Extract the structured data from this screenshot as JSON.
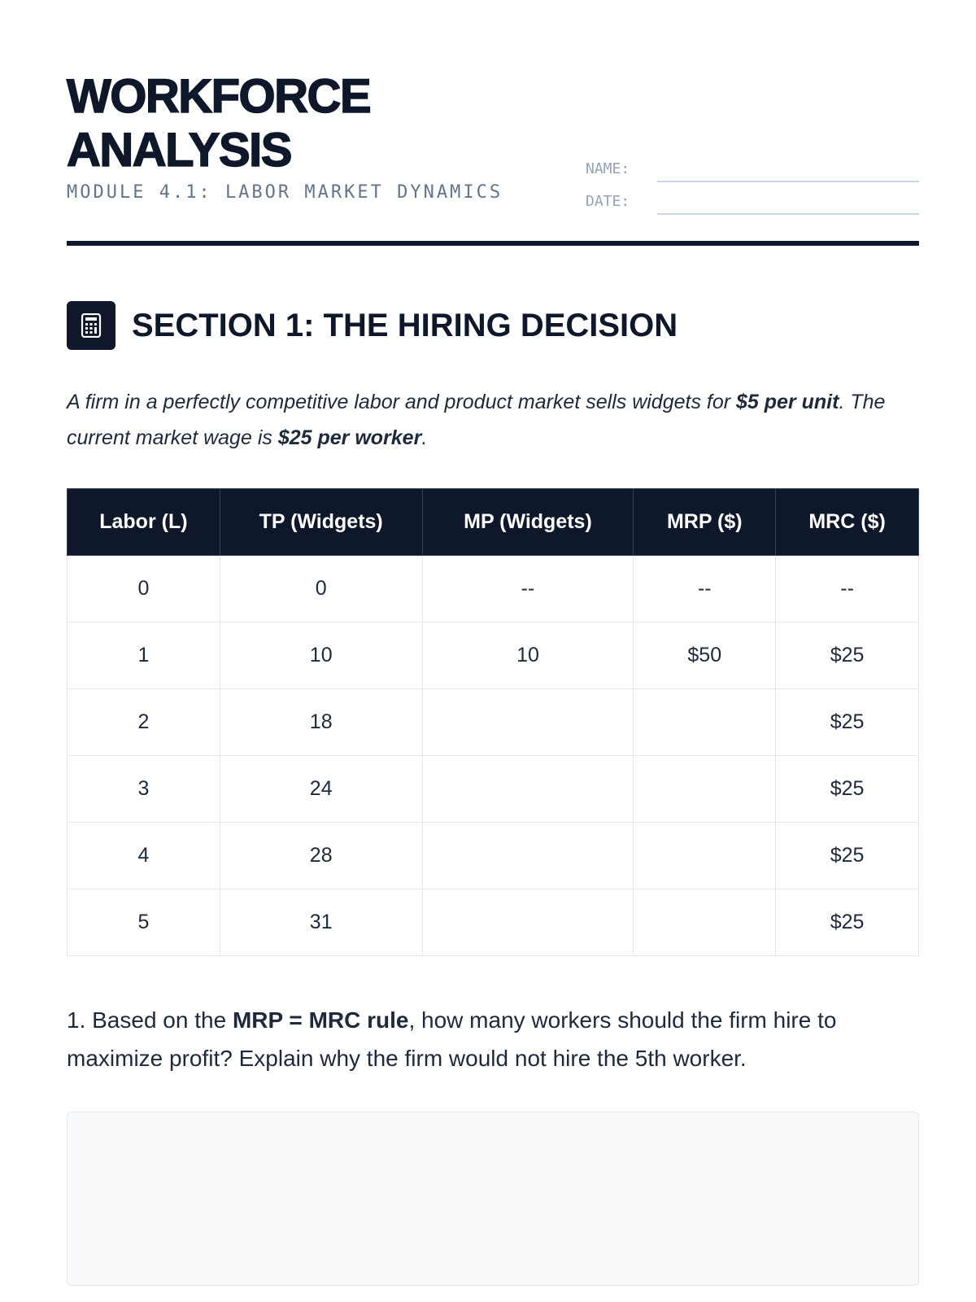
{
  "header": {
    "title_line1": "WORKFORCE",
    "title_line2": "ANALYSIS",
    "subtitle": "MODULE 4.1: LABOR MARKET DYNAMICS",
    "name_label": "NAME:",
    "date_label": "DATE:"
  },
  "section": {
    "icon": "calculator-icon",
    "title": "SECTION 1: THE HIRING DECISION",
    "intro_part1": "A firm in a perfectly competitive labor and product market sells widgets for ",
    "intro_bold1": "$5 per unit",
    "intro_part2": ". The current market wage is ",
    "intro_bold2": "$25 per worker",
    "intro_part3": "."
  },
  "table": {
    "headers": [
      "Labor (L)",
      "TP (Widgets)",
      "MP (Widgets)",
      "MRP ($)",
      "MRC ($)"
    ],
    "rows": [
      [
        "0",
        "0",
        "--",
        "--",
        "--"
      ],
      [
        "1",
        "10",
        "10",
        "$50",
        "$25"
      ],
      [
        "2",
        "18",
        "",
        "",
        "$25"
      ],
      [
        "3",
        "24",
        "",
        "",
        "$25"
      ],
      [
        "4",
        "28",
        "",
        "",
        "$25"
      ],
      [
        "5",
        "31",
        "",
        "",
        "$25"
      ]
    ]
  },
  "question": {
    "part1": "1. Based on the ",
    "bold": "MRP = MRC rule",
    "part2": ", how many workers should the firm hire to maximize profit? Explain why the firm would not hire the 5th worker.",
    "answer_value": ""
  },
  "colors": {
    "primary": "#0f172a",
    "muted": "#64748b",
    "border": "#e2e8f0",
    "answer_bg": "#f8fafc"
  }
}
